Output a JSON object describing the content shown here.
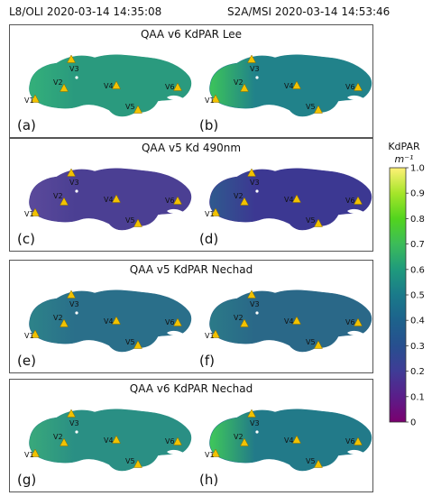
{
  "header": {
    "left": "L8/OLI 2020-03-14 14:35:08",
    "right": "S2A/MSI 2020-03-14 14:53:46"
  },
  "colorbar": {
    "title_line1": "KdPAR",
    "title_line2": "m⁻¹",
    "ticks": [
      "1.0",
      "0.9",
      "0.8",
      "0.7",
      "0.6",
      "0.5",
      "0.4",
      "0.3",
      "0.2",
      "0.1",
      "0"
    ],
    "colors": [
      "#7a006f",
      "#5a1e8a",
      "#3f3c96",
      "#274f8f",
      "#1d628c",
      "#1a7a8a",
      "#1f9a7c",
      "#3cbc59",
      "#52d41e",
      "#a6e52a",
      "#fff176"
    ]
  },
  "chart_data": [
    {
      "type": "heatmap",
      "title": "QAA v6 KdPAR Lee",
      "subplots": [
        {
          "label": "(a)",
          "sensor": "L8/OLI",
          "base_color": "#2a9a7e",
          "west_color": "#34b07a"
        },
        {
          "label": "(b)",
          "sensor": "S2A/MSI",
          "base_color": "#21828a",
          "west_color": "#3cc45a"
        }
      ],
      "sites": [
        "V1",
        "V2",
        "V3",
        "V4",
        "V5",
        "V6"
      ]
    },
    {
      "type": "heatmap",
      "title": "QAA v5 Kd 490nm",
      "subplots": [
        {
          "label": "(c)",
          "sensor": "L8/OLI",
          "base_color": "#4b3f93",
          "west_color": "#5b4a9b"
        },
        {
          "label": "(d)",
          "sensor": "S2A/MSI",
          "base_color": "#3c3892",
          "west_color": "#2f5a8e"
        }
      ],
      "sites": [
        "V1",
        "V2",
        "V3",
        "V4",
        "V5",
        "V6"
      ]
    },
    {
      "type": "heatmap",
      "title": "QAA v5 KdPAR Nechad",
      "subplots": [
        {
          "label": "(e)",
          "sensor": "L8/OLI",
          "base_color": "#2a6f8a",
          "west_color": "#2d8389"
        },
        {
          "label": "(f)",
          "sensor": "S2A/MSI",
          "base_color": "#2a6888",
          "west_color": "#2b7a88"
        }
      ],
      "sites": [
        "V1",
        "V2",
        "V3",
        "V4",
        "V5",
        "V6"
      ]
    },
    {
      "type": "heatmap",
      "title": "QAA v6 KdPAR Nechad",
      "subplots": [
        {
          "label": "(g)",
          "sensor": "L8/OLI",
          "base_color": "#2a8f84",
          "west_color": "#39a97b"
        },
        {
          "label": "(h)",
          "sensor": "S2A/MSI",
          "base_color": "#227a89",
          "west_color": "#3fc85a"
        }
      ],
      "sites": [
        "V1",
        "V2",
        "V3",
        "V4",
        "V5",
        "V6"
      ]
    }
  ]
}
